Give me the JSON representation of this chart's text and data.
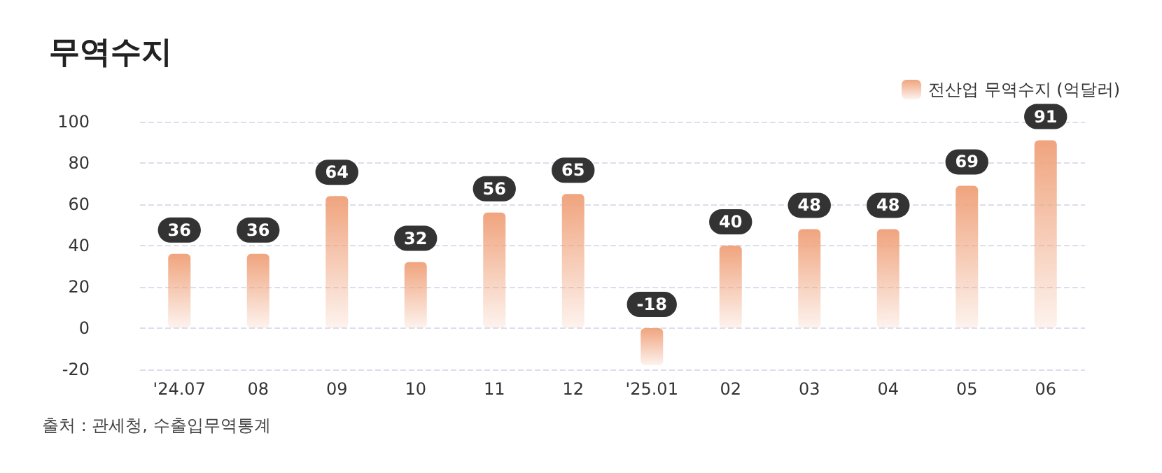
{
  "chart_data": {
    "type": "bar",
    "title": "무역수지",
    "categories": [
      "'24.07",
      "08",
      "09",
      "10",
      "11",
      "12",
      "'25.01",
      "02",
      "03",
      "04",
      "05",
      "06"
    ],
    "series": [
      {
        "name": "전산업 무역수지 (억달러)",
        "color": "#f0a47e",
        "values": [
          36,
          36,
          64,
          32,
          56,
          65,
          -18,
          40,
          48,
          48,
          69,
          91
        ]
      }
    ],
    "ylim": [
      -20,
      100
    ],
    "yticks": [
      -20,
      0,
      20,
      40,
      60,
      80,
      100
    ],
    "grid": "y",
    "legend": "top right",
    "data_labels": true,
    "annotations": [
      "출처 : 관세청, 수출입무역통계"
    ]
  }
}
